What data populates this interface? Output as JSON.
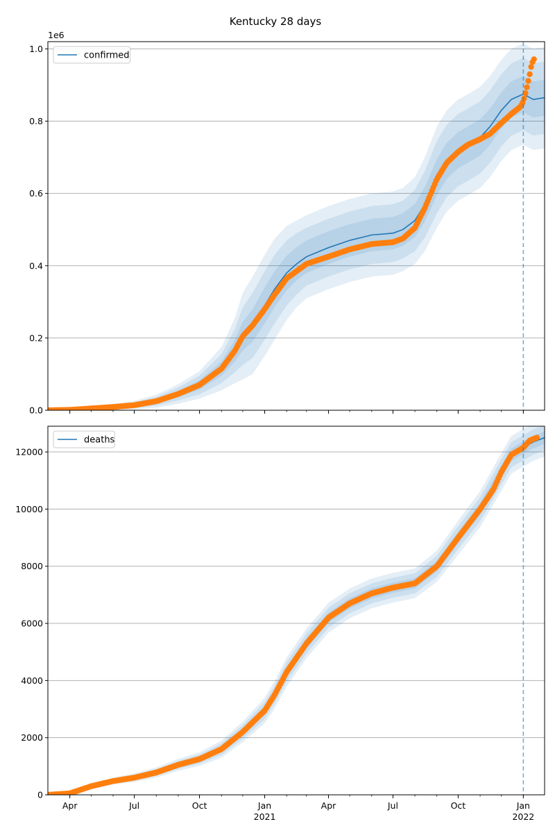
{
  "figure_title": "Kentucky 28 days",
  "colors": {
    "model": "#1f77b4",
    "observed": "#ff7f0e",
    "band": "#1f77b4",
    "grid": "#b0b0b0",
    "cutoff": "#1f77b4"
  },
  "chart_data": [
    {
      "type": "line",
      "title": "Kentucky 28 days",
      "xlabel": "",
      "ylabel": "",
      "x_range": [
        "2020-03-01",
        "2022-01-31"
      ],
      "ylim": [
        0,
        1020000
      ],
      "y_scale_label": "1e6",
      "y_ticks": [
        0,
        200000,
        400000,
        600000,
        800000,
        1000000
      ],
      "y_tick_labels": [
        "0.0",
        "0.2",
        "0.4",
        "0.6",
        "0.8",
        "1.0"
      ],
      "x_ticks": [
        "2020-04-01",
        "2020-07-01",
        "2020-10-01",
        "2021-01-01",
        "2021-04-01",
        "2021-07-01",
        "2021-10-01",
        "2022-01-01"
      ],
      "x_tick_labels": [
        "",
        "",
        "",
        "",
        "",
        "",
        "",
        ""
      ],
      "grid": "horizontal",
      "legend_position": "top-left",
      "cutoff_date": "2022-01-01",
      "series": [
        {
          "name": "confirmed",
          "kind": "model",
          "x": [
            "2020-03-01",
            "2020-04-01",
            "2020-05-01",
            "2020-06-01",
            "2020-07-01",
            "2020-08-01",
            "2020-09-01",
            "2020-10-01",
            "2020-11-01",
            "2020-11-20",
            "2020-12-01",
            "2020-12-15",
            "2021-01-01",
            "2021-01-15",
            "2021-02-01",
            "2021-02-15",
            "2021-03-01",
            "2021-04-01",
            "2021-05-01",
            "2021-06-01",
            "2021-07-01",
            "2021-07-15",
            "2021-08-01",
            "2021-08-15",
            "2021-09-01",
            "2021-09-15",
            "2021-10-01",
            "2021-10-15",
            "2021-11-01",
            "2021-11-15",
            "2021-12-01",
            "2021-12-15",
            "2022-01-01",
            "2022-01-15",
            "2022-01-31"
          ],
          "values": [
            0,
            1000,
            5000,
            9000,
            14000,
            25000,
            45000,
            70000,
            115000,
            165000,
            205000,
            235000,
            290000,
            335000,
            380000,
            405000,
            425000,
            450000,
            470000,
            485000,
            490000,
            500000,
            525000,
            570000,
            645000,
            690000,
            720000,
            735000,
            755000,
            785000,
            830000,
            860000,
            875000,
            860000,
            865000
          ],
          "band_halfwidths": [
            [
              0,
              500,
              1500,
              2500,
              4000,
              6000,
              9000,
              13000,
              20000,
              30000,
              40000,
              45000,
              50000,
              50000,
              48000,
              46000,
              45000,
              45000,
              45000,
              45000,
              45000,
              45000,
              46000,
              48000,
              50000,
              50000,
              50000,
              50000,
              50000,
              50000,
              50000,
              50000,
              50000,
              50000,
              50000
            ],
            [
              0,
              1000,
              3000,
              5000,
              8000,
              12000,
              18000,
              26000,
              40000,
              60000,
              80000,
              90000,
              95000,
              95000,
              90000,
              85000,
              80000,
              80000,
              80000,
              80000,
              80000,
              80000,
              85000,
              92000,
              100000,
              100000,
              100000,
              100000,
              100000,
              100000,
              100000,
              100000,
              100000,
              100000,
              100000
            ],
            [
              0,
              1500,
              4500,
              7500,
              12000,
              18000,
              27000,
              38000,
              60000,
              90000,
              120000,
              135000,
              140000,
              140000,
              130000,
              120000,
              115000,
              115000,
              115000,
              115000,
              115000,
              115000,
              120000,
              130000,
              140000,
              140000,
              140000,
              140000,
              140000,
              140000,
              140000,
              140000,
              140000,
              140000,
              140000
            ]
          ]
        },
        {
          "name": "",
          "kind": "observed",
          "x": [
            "2020-03-01",
            "2020-04-01",
            "2020-05-01",
            "2020-06-01",
            "2020-07-01",
            "2020-08-01",
            "2020-09-01",
            "2020-10-01",
            "2020-11-01",
            "2020-11-20",
            "2020-12-01",
            "2020-12-15",
            "2021-01-01",
            "2021-01-15",
            "2021-02-01",
            "2021-02-15",
            "2021-03-01",
            "2021-04-01",
            "2021-05-01",
            "2021-06-01",
            "2021-07-01",
            "2021-07-15",
            "2021-08-01",
            "2021-08-15",
            "2021-09-01",
            "2021-09-15",
            "2021-10-01",
            "2021-10-15",
            "2021-11-01",
            "2021-11-15",
            "2021-12-01",
            "2021-12-15",
            "2021-12-28",
            "2022-01-01",
            "2022-01-05",
            "2022-01-09",
            "2022-01-13",
            "2022-01-17"
          ],
          "values": [
            0,
            1000,
            5000,
            9000,
            14000,
            25000,
            45000,
            70000,
            115000,
            165000,
            205000,
            235000,
            280000,
            320000,
            365000,
            385000,
            405000,
            425000,
            445000,
            460000,
            465000,
            475000,
            505000,
            560000,
            640000,
            685000,
            715000,
            735000,
            750000,
            765000,
            795000,
            820000,
            840000,
            855000,
            885000,
            920000,
            960000,
            975000
          ]
        }
      ]
    },
    {
      "type": "line",
      "xlabel": "",
      "ylabel": "",
      "x_range": [
        "2020-03-01",
        "2022-01-31"
      ],
      "ylim": [
        0,
        12900
      ],
      "y_ticks": [
        0,
        2000,
        4000,
        6000,
        8000,
        10000,
        12000
      ],
      "y_tick_labels": [
        "0",
        "2000",
        "4000",
        "6000",
        "8000",
        "10000",
        "12000"
      ],
      "x_ticks": [
        "2020-04-01",
        "2020-07-01",
        "2020-10-01",
        "2021-01-01",
        "2021-04-01",
        "2021-07-01",
        "2021-10-01",
        "2022-01-01"
      ],
      "x_tick_labels": [
        "Apr",
        "Jul",
        "Oct",
        "Jan",
        "Apr",
        "Jul",
        "Oct",
        "Jan"
      ],
      "x_year_labels": [
        {
          "tick": "2021-01-01",
          "label": "2021"
        },
        {
          "tick": "2022-01-01",
          "label": "2022"
        }
      ],
      "grid": "horizontal",
      "legend_position": "top-left",
      "cutoff_date": "2022-01-01",
      "series": [
        {
          "name": "deaths",
          "kind": "model",
          "x": [
            "2020-03-01",
            "2020-04-01",
            "2020-05-01",
            "2020-06-01",
            "2020-07-01",
            "2020-08-01",
            "2020-09-01",
            "2020-10-01",
            "2020-11-01",
            "2020-12-01",
            "2021-01-01",
            "2021-01-15",
            "2021-02-01",
            "2021-02-15",
            "2021-03-01",
            "2021-04-01",
            "2021-05-01",
            "2021-06-01",
            "2021-07-01",
            "2021-08-01",
            "2021-09-01",
            "2021-10-01",
            "2021-11-01",
            "2021-12-01",
            "2021-12-15",
            "2022-01-01",
            "2022-01-15",
            "2022-01-31"
          ],
          "values": [
            0,
            50,
            300,
            480,
            600,
            780,
            1050,
            1250,
            1600,
            2200,
            2950,
            3500,
            4300,
            4800,
            5300,
            6200,
            6700,
            7050,
            7250,
            7400,
            8000,
            9000,
            10000,
            11300,
            11900,
            12150,
            12350,
            12500
          ],
          "band_halfwidths": [
            [
              0,
              10,
              30,
              40,
              50,
              60,
              70,
              80,
              100,
              120,
              150,
              160,
              170,
              180,
              180,
              180,
              180,
              180,
              180,
              180,
              190,
              200,
              210,
              220,
              220,
              220,
              220,
              220
            ],
            [
              0,
              20,
              60,
              80,
              100,
              120,
              140,
              160,
              200,
              240,
              300,
              320,
              340,
              350,
              350,
              350,
              350,
              350,
              350,
              350,
              370,
              400,
              420,
              440,
              440,
              440,
              440,
              440
            ],
            [
              0,
              30,
              90,
              120,
              150,
              180,
              210,
              240,
              300,
              360,
              450,
              480,
              510,
              520,
              520,
              520,
              520,
              520,
              520,
              520,
              550,
              600,
              630,
              660,
              660,
              660,
              660,
              660
            ]
          ]
        },
        {
          "name": "",
          "kind": "observed",
          "x": [
            "2020-03-01",
            "2020-04-01",
            "2020-05-01",
            "2020-06-01",
            "2020-07-01",
            "2020-08-01",
            "2020-09-01",
            "2020-10-01",
            "2020-11-01",
            "2020-12-01",
            "2021-01-01",
            "2021-01-15",
            "2021-02-01",
            "2021-02-15",
            "2021-03-01",
            "2021-04-01",
            "2021-05-01",
            "2021-06-01",
            "2021-07-01",
            "2021-08-01",
            "2021-09-01",
            "2021-10-01",
            "2021-11-01",
            "2021-11-20",
            "2021-12-01",
            "2021-12-15",
            "2022-01-01",
            "2022-01-10",
            "2022-01-20"
          ],
          "values": [
            0,
            50,
            300,
            480,
            600,
            780,
            1050,
            1250,
            1600,
            2200,
            2950,
            3500,
            4300,
            4800,
            5300,
            6200,
            6700,
            7050,
            7250,
            7400,
            8000,
            9000,
            10000,
            10700,
            11300,
            11900,
            12150,
            12400,
            12500
          ]
        }
      ]
    }
  ]
}
